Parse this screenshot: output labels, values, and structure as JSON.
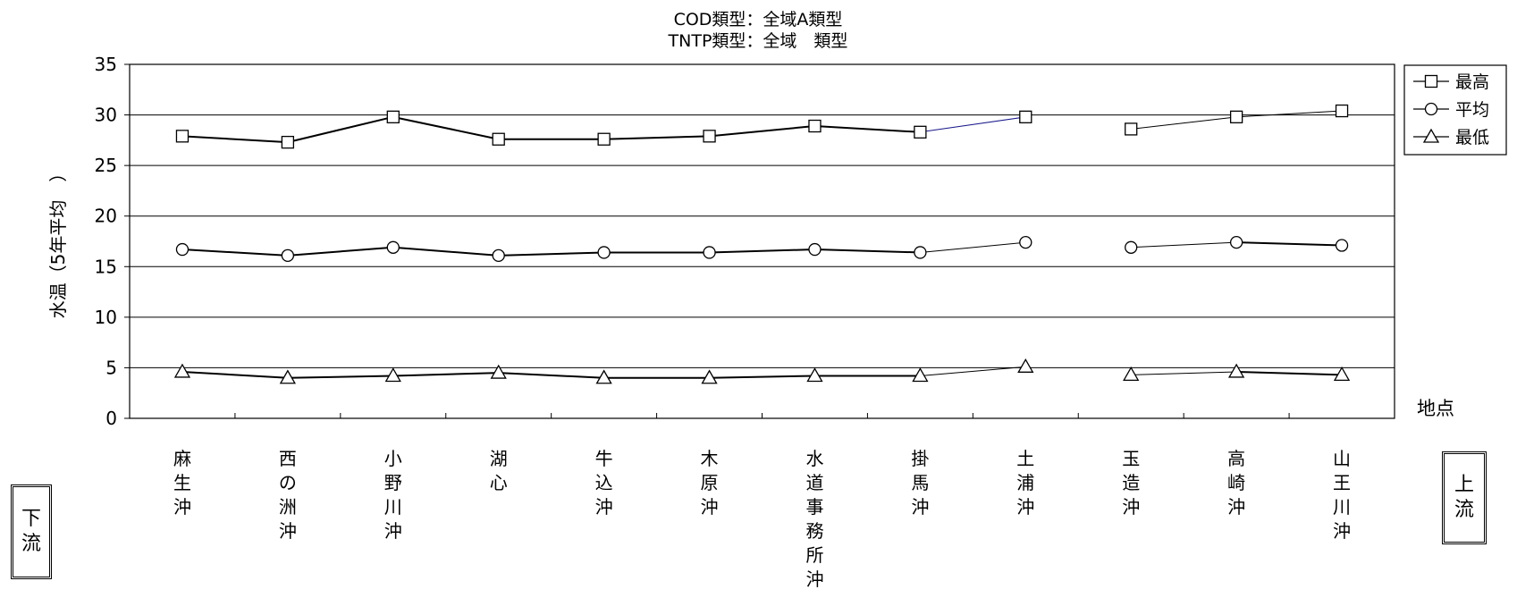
{
  "chart_data": {
    "type": "line",
    "title": [
      "COD類型：全域A類型",
      "TNTP類型：全域　類型"
    ],
    "ylabel": "水温（5年平均　）",
    "xlabel": "地点",
    "ylim": [
      0,
      35
    ],
    "yticks": [
      0,
      5,
      10,
      15,
      20,
      25,
      30,
      35
    ],
    "grid": true,
    "legend_position": "top-right",
    "categories": [
      "麻生沖",
      "西の洲沖",
      "小野川沖",
      "湖心",
      "牛込沖",
      "木原沖",
      "水道事務所沖",
      "掛馬沖",
      "土浦沖",
      "玉造沖",
      "高崎沖",
      "山王川沖"
    ],
    "series": [
      {
        "name": "最高",
        "marker": "square",
        "values": [
          27.9,
          27.3,
          29.8,
          27.6,
          27.6,
          27.9,
          28.9,
          28.3,
          29.8,
          28.6,
          29.8,
          30.4
        ]
      },
      {
        "name": "平均",
        "marker": "circle",
        "values": [
          16.7,
          16.1,
          16.9,
          16.1,
          16.4,
          16.4,
          16.7,
          16.4,
          17.4,
          16.9,
          17.4,
          17.1
        ]
      },
      {
        "name": "最低",
        "marker": "triangle",
        "values": [
          4.6,
          4.0,
          4.2,
          4.5,
          4.0,
          4.0,
          4.2,
          4.2,
          5.1,
          4.3,
          4.6,
          4.3
        ]
      }
    ],
    "line_color_accent": "#1a1a8c"
  },
  "labels": {
    "downstream": "下流",
    "upstream": "上流"
  }
}
